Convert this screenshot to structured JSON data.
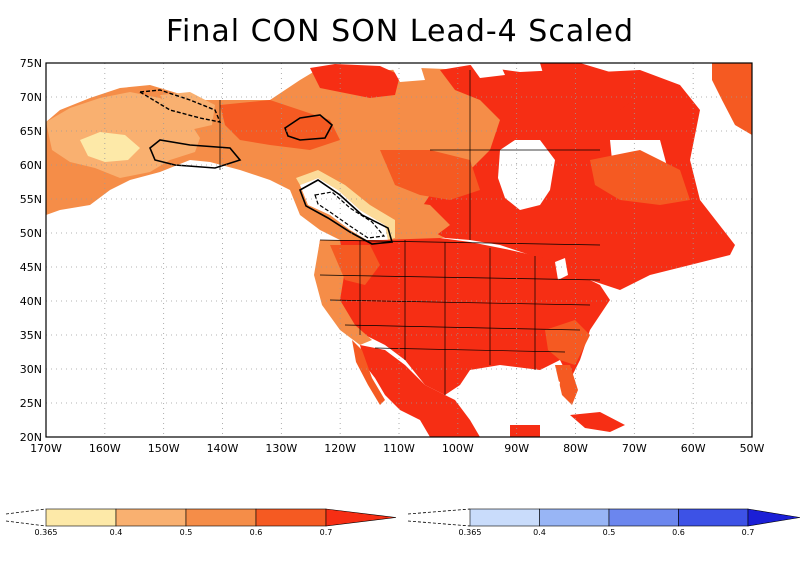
{
  "title": "Final CON SON Lead-4 Scaled",
  "map": {
    "lat_labels": [
      "75N",
      "70N",
      "65N",
      "60N",
      "55N",
      "50N",
      "45N",
      "40N",
      "35N",
      "30N",
      "25N",
      "20N"
    ],
    "lon_labels": [
      "170W",
      "160W",
      "150W",
      "140W",
      "130W",
      "120W",
      "110W",
      "100W",
      "90W",
      "80W",
      "70W",
      "60W",
      "50W"
    ],
    "colors": {
      "c0": "#fde9a8",
      "c1": "#f9b070",
      "c2": "#f58d48",
      "c3": "#f55a22",
      "c4": "#f62e14",
      "land_outline": "#000000",
      "grid": "#9a9a9a"
    }
  },
  "colorbar_warm": {
    "labels": [
      "0.365",
      "0.4",
      "0.5",
      "0.6",
      "0.7"
    ],
    "colors": [
      "#fde9a8",
      "#f9b070",
      "#f58d48",
      "#f55a22",
      "#f62e14"
    ]
  },
  "colorbar_cool": {
    "labels": [
      "0.365",
      "0.4",
      "0.5",
      "0.6",
      "0.7"
    ],
    "colors": [
      "#c9dcfb",
      "#98b5f5",
      "#6b86ee",
      "#3d52e6",
      "#1b1fd6"
    ]
  }
}
